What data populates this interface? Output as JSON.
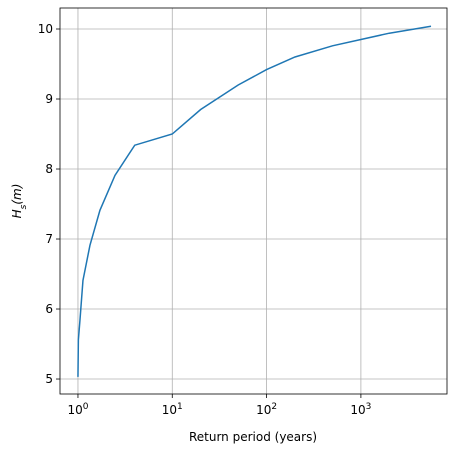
{
  "chart_data": {
    "type": "line",
    "xlabel": "Return period (years)",
    "ylabel": "H_s(m)",
    "xscale": "log",
    "grid": true,
    "xlim": [
      0.645,
      8185
    ],
    "ylim": [
      4.786,
      10.3
    ],
    "xticks": [
      {
        "value": 1,
        "label": "10^0"
      },
      {
        "value": 10,
        "label": "10^1"
      },
      {
        "value": 100,
        "label": "10^2"
      },
      {
        "value": 1000,
        "label": "10^3"
      }
    ],
    "yticks": [
      5,
      6,
      7,
      8,
      9,
      10
    ],
    "x": [
      1.0,
      1.01,
      1.05,
      1.13,
      1.34,
      1.71,
      2.47,
      4.0,
      10,
      20,
      50,
      100,
      200,
      500,
      1000,
      2000,
      5540
    ],
    "series": [
      {
        "color": "#1f77b4",
        "values": [
          5.03,
          5.56,
          5.84,
          6.41,
          6.91,
          7.41,
          7.91,
          8.34,
          8.5,
          8.85,
          9.2,
          9.42,
          9.6,
          9.76,
          9.85,
          9.94,
          10.04
        ]
      }
    ]
  }
}
